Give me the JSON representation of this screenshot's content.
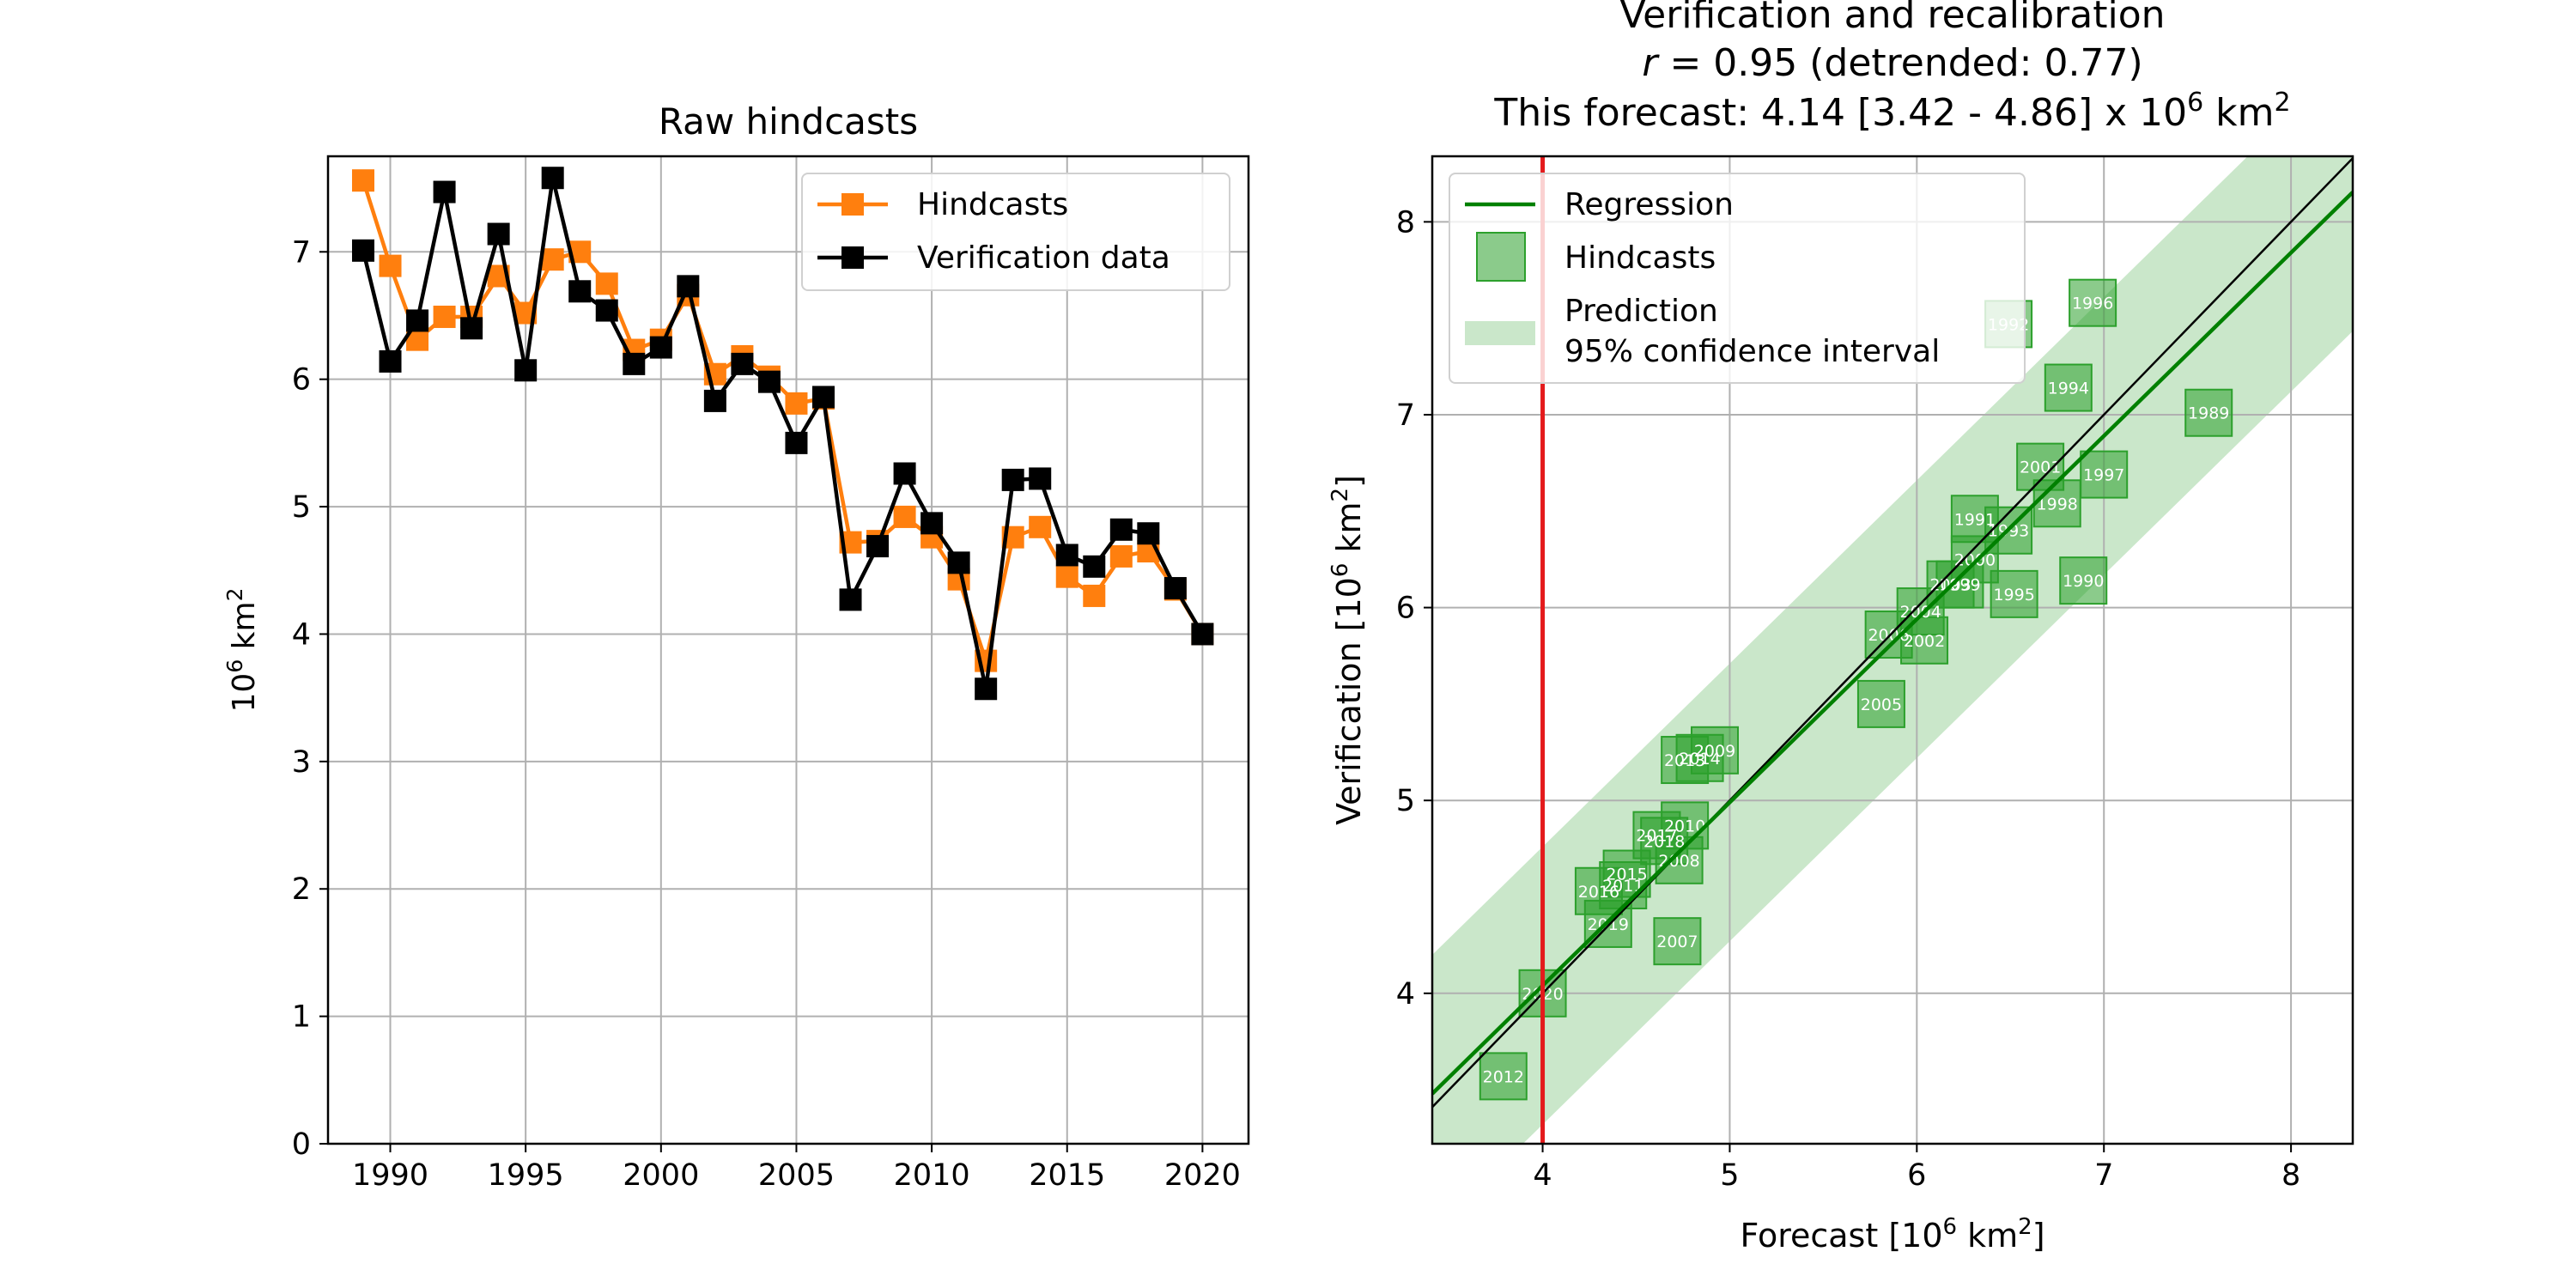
{
  "chart_data": [
    {
      "type": "line",
      "title": "Raw hindcasts",
      "xlabel": "",
      "ylabel": "10^6 km^2",
      "ylabel_base": "10",
      "ylabel_exp": "6",
      "ylabel_unit": "km",
      "ylabel_unit_exp": "2",
      "xlim": [
        1987.7,
        2021.7
      ],
      "ylim": [
        0,
        7.75
      ],
      "xticks": [
        1990,
        1995,
        2000,
        2005,
        2010,
        2015,
        2020
      ],
      "yticks": [
        0,
        1,
        2,
        3,
        4,
        5,
        6,
        7
      ],
      "grid": true,
      "legend_position": "top-right",
      "x": [
        1989,
        1990,
        1991,
        1992,
        1993,
        1994,
        1995,
        1996,
        1997,
        1998,
        1999,
        2000,
        2001,
        2002,
        2003,
        2004,
        2005,
        2006,
        2007,
        2008,
        2009,
        2010,
        2011,
        2012,
        2013,
        2014,
        2015,
        2016,
        2017,
        2018,
        2019,
        2020
      ],
      "series": [
        {
          "name": "Hindcasts",
          "color": "#ff7f0e",
          "marker": "square",
          "values": [
            7.56,
            6.89,
            6.31,
            6.49,
            6.49,
            6.81,
            6.52,
            6.94,
            7.0,
            6.75,
            6.23,
            6.31,
            6.66,
            6.04,
            6.18,
            6.02,
            5.81,
            5.85,
            4.72,
            4.73,
            4.92,
            4.76,
            4.43,
            3.79,
            4.76,
            4.84,
            4.45,
            4.3,
            4.61,
            4.65,
            4.35,
            4.0
          ]
        },
        {
          "name": "Verification data",
          "color": "#000000",
          "marker": "square",
          "values": [
            7.01,
            6.14,
            6.46,
            7.47,
            6.4,
            7.14,
            6.07,
            7.58,
            6.69,
            6.54,
            6.12,
            6.25,
            6.73,
            5.83,
            6.12,
            5.98,
            5.5,
            5.86,
            4.27,
            4.69,
            5.26,
            4.87,
            4.56,
            3.57,
            5.21,
            5.22,
            4.62,
            4.53,
            4.82,
            4.79,
            4.36,
            4.0
          ]
        }
      ]
    },
    {
      "type": "scatter",
      "title_line1": "Verification and recalibration",
      "title_line2_r": "r",
      "title_line2_rest": " = 0.95 (detrended: 0.77)",
      "title_line3_main": "This forecast: 4.14 [3.42 - 4.86] x 10",
      "title_line3_exp": "6",
      "title_line3_unit": " km",
      "title_line3_unit_exp": "2",
      "xlabel": "Forecast [10^6 km^2]",
      "xlabel_prefix": "Forecast [10",
      "xlabel_exp": "6",
      "xlabel_unit": " km",
      "xlabel_unit_exp": "2",
      "xlabel_suffix": "]",
      "ylabel": "Verification [10^6 km^2]",
      "ylabel_prefix": "Verification [10",
      "ylabel_exp": "6",
      "ylabel_unit": " km",
      "ylabel_unit_exp": "2",
      "ylabel_suffix": "]",
      "xlim": [
        3.41,
        8.33
      ],
      "ylim": [
        3.22,
        8.34
      ],
      "xticks": [
        4,
        5,
        6,
        7,
        8
      ],
      "yticks": [
        4,
        5,
        6,
        7,
        8
      ],
      "grid": true,
      "legend_position": "top-left",
      "forecast_line_x": 4.0,
      "forecast_line_color": "#e41a1c",
      "regression": {
        "name": "Regression",
        "slope": 0.95,
        "intercept": 0.24,
        "color": "#008000"
      },
      "one_to_one": {
        "slope": 1.0,
        "intercept": 0.0,
        "color": "#000000"
      },
      "prediction_interval": {
        "name": "Prediction\n95% confidence interval",
        "line1": "Prediction",
        "line2": "95% confidence interval",
        "half_width": 0.72,
        "color": "#2ca02c",
        "opacity": 0.25
      },
      "hindcast_marker": {
        "name": "Hindcasts",
        "color": "#2ca02c",
        "opacity": 0.55
      },
      "points": [
        {
          "year": "1989",
          "x": 7.56,
          "y": 7.01
        },
        {
          "year": "1990",
          "x": 6.89,
          "y": 6.14
        },
        {
          "year": "1991",
          "x": 6.31,
          "y": 6.46
        },
        {
          "year": "1992",
          "x": 6.49,
          "y": 7.47
        },
        {
          "year": "1993",
          "x": 6.49,
          "y": 6.4
        },
        {
          "year": "1994",
          "x": 6.81,
          "y": 7.14
        },
        {
          "year": "1995",
          "x": 6.52,
          "y": 6.07
        },
        {
          "year": "1996",
          "x": 6.94,
          "y": 7.58
        },
        {
          "year": "1997",
          "x": 7.0,
          "y": 6.69
        },
        {
          "year": "1998",
          "x": 6.75,
          "y": 6.54
        },
        {
          "year": "1999",
          "x": 6.23,
          "y": 6.12
        },
        {
          "year": "2000",
          "x": 6.31,
          "y": 6.25
        },
        {
          "year": "2001",
          "x": 6.66,
          "y": 6.73
        },
        {
          "year": "2002",
          "x": 6.04,
          "y": 5.83
        },
        {
          "year": "2003",
          "x": 6.18,
          "y": 6.12
        },
        {
          "year": "2004",
          "x": 6.02,
          "y": 5.98
        },
        {
          "year": "2005",
          "x": 5.81,
          "y": 5.5
        },
        {
          "year": "2006",
          "x": 5.85,
          "y": 5.86
        },
        {
          "year": "2007",
          "x": 4.72,
          "y": 4.27
        },
        {
          "year": "2008",
          "x": 4.73,
          "y": 4.69
        },
        {
          "year": "2009",
          "x": 4.92,
          "y": 5.26
        },
        {
          "year": "2010",
          "x": 4.76,
          "y": 4.87
        },
        {
          "year": "2011",
          "x": 4.43,
          "y": 4.56
        },
        {
          "year": "2012",
          "x": 3.79,
          "y": 3.57
        },
        {
          "year": "2013",
          "x": 4.76,
          "y": 5.21
        },
        {
          "year": "2014",
          "x": 4.84,
          "y": 5.22
        },
        {
          "year": "2015",
          "x": 4.45,
          "y": 4.62
        },
        {
          "year": "2016",
          "x": 4.3,
          "y": 4.53
        },
        {
          "year": "2017",
          "x": 4.61,
          "y": 4.82
        },
        {
          "year": "2018",
          "x": 4.65,
          "y": 4.79
        },
        {
          "year": "2019",
          "x": 4.35,
          "y": 4.36
        },
        {
          "year": "2020",
          "x": 4.0,
          "y": 4.0
        }
      ]
    }
  ]
}
